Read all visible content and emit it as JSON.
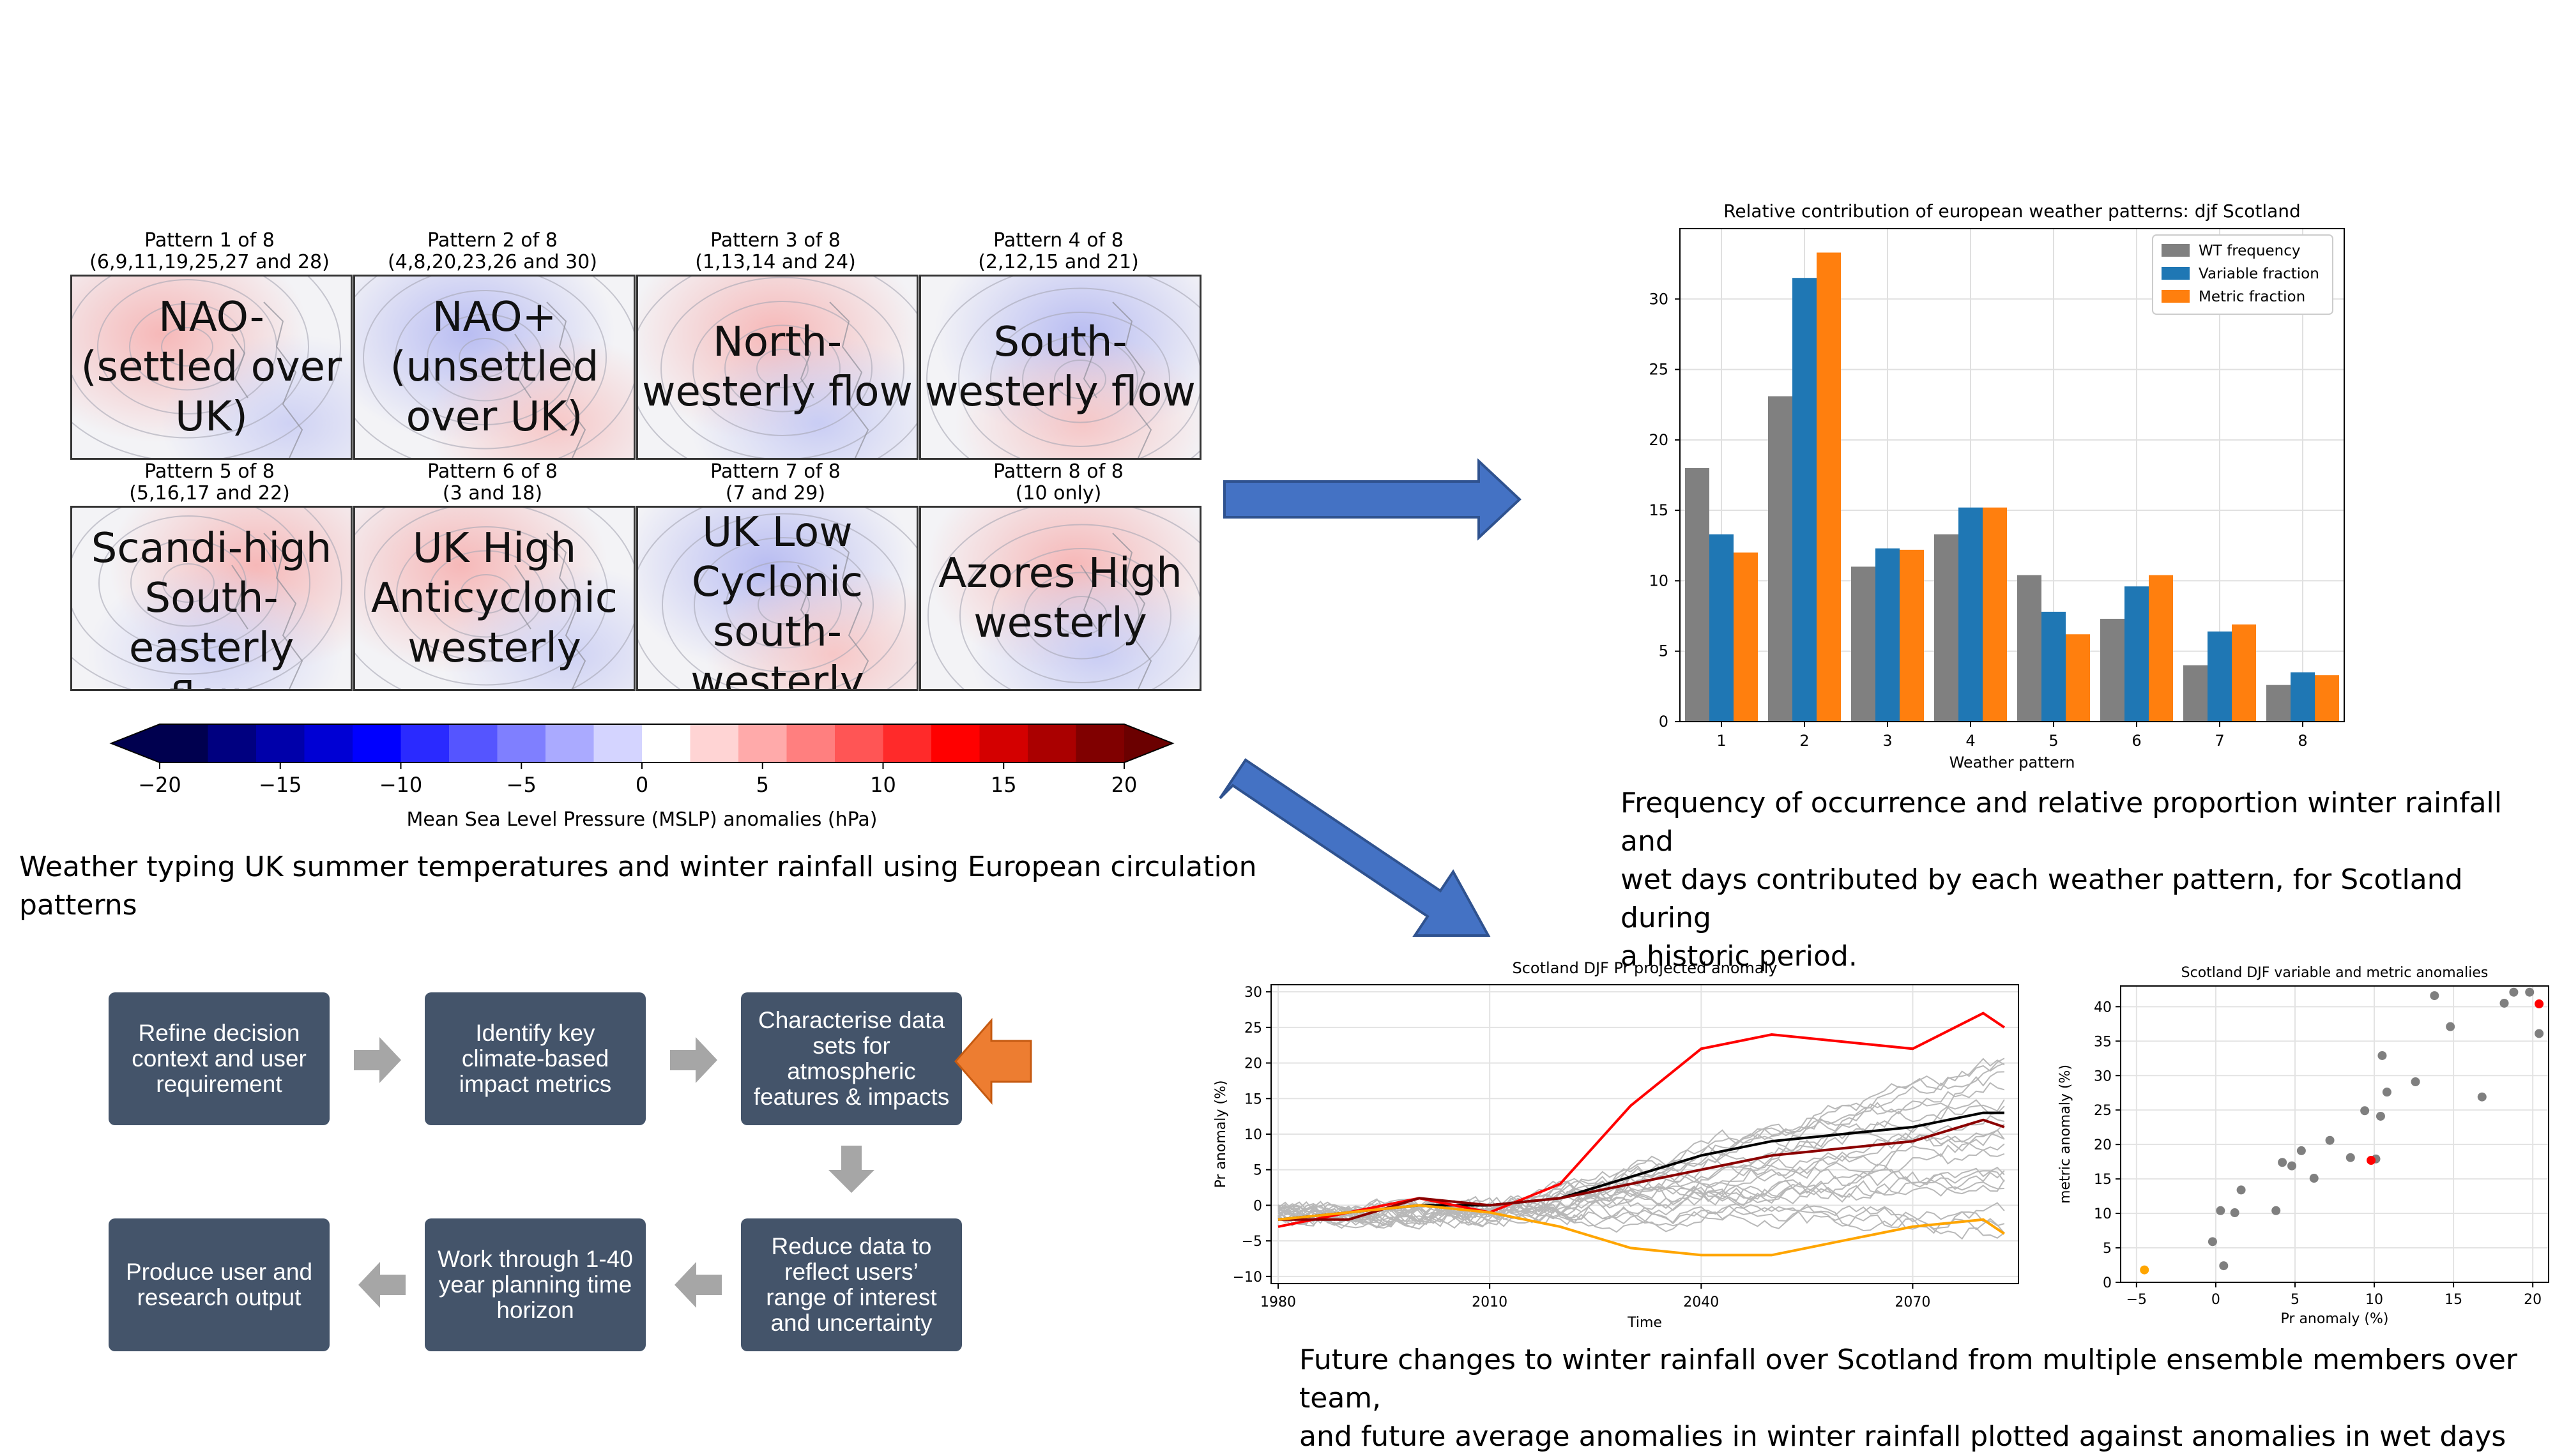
{
  "patterns": [
    {
      "title": "Pattern 1 of 8",
      "members": "(6,9,11,19,25,27 and 28)",
      "label_lines": [
        "NAO-",
        "(settled over",
        "UK)"
      ],
      "tone": "high"
    },
    {
      "title": "Pattern 2 of 8",
      "members": "(4,8,20,23,26 and 30)",
      "label_lines": [
        "NAO+",
        "(unsettled",
        "over UK)"
      ],
      "tone": "low"
    },
    {
      "title": "Pattern 3 of 8",
      "members": "(1,13,14 and 24)",
      "label_lines": [
        "North-",
        "westerly flow"
      ],
      "tone": "mixed"
    },
    {
      "title": "Pattern 4 of 8",
      "members": "(2,12,15 and 21)",
      "label_lines": [
        "South-",
        "westerly flow"
      ],
      "tone": "low"
    },
    {
      "title": "Pattern 5 of 8",
      "members": "(5,16,17 and 22)",
      "label_lines": [
        "Scandi-high",
        "South-easterly",
        "flow"
      ],
      "tone": "high"
    },
    {
      "title": "Pattern 6 of 8",
      "members": "(3 and 18)",
      "label_lines": [
        "UK High",
        "Anticyclonic",
        "westerly"
      ],
      "tone": "high"
    },
    {
      "title": "Pattern 7 of 8",
      "members": "(7 and 29)",
      "label_lines": [
        "UK Low",
        "Cyclonic",
        "south-",
        "westerly"
      ],
      "tone": "low"
    },
    {
      "title": "Pattern 8 of 8",
      "members": "(10 only)",
      "label_lines": [
        "Azores High",
        "westerly"
      ],
      "tone": "mixed"
    }
  ],
  "colorbar": {
    "ticks": [
      "−20",
      "−15",
      "−10",
      "−5",
      "0",
      "5",
      "10",
      "15",
      "20"
    ],
    "label": "Mean Sea Level Pressure (MSLP) anomalies (hPa)",
    "colors": [
      "#00008b",
      "#0000ff",
      "#ffffff",
      "#ff0000",
      "#8b0000"
    ]
  },
  "captions": {
    "weather_typing": "Weather typing UK summer temperatures and winter rainfall using European circulation patterns",
    "frequency": [
      "Frequency of occurrence and relative proportion winter rainfall and",
      "wet days contributed by each weather pattern, for Scotland during",
      "a historic period."
    ],
    "future": [
      "Future changes to winter rainfall over Scotland from multiple ensemble members over team,",
      "and future average anomalies in winter rainfall plotted against anomalies in wet days"
    ]
  },
  "workflow": {
    "steps": [
      {
        "lines": [
          "Refine decision",
          "context and user",
          "requirement"
        ]
      },
      {
        "lines": [
          "Identify key",
          "climate-based",
          "impact metrics"
        ]
      },
      {
        "lines": [
          "Characterise data",
          "sets for",
          "atmospheric",
          "features & impacts"
        ]
      },
      {
        "lines": [
          "Reduce data to",
          "reflect users’",
          "range of interest",
          "and uncertainty"
        ]
      },
      {
        "lines": [
          "Work through 1-40",
          "year planning time",
          "horizon"
        ]
      },
      {
        "lines": [
          "Produce user and",
          "research output"
        ]
      }
    ],
    "highlight_color": "#ed7d31",
    "box_color": "#44546a"
  },
  "chart_data": [
    {
      "type": "bar",
      "title": "Relative contribution of european weather patterns: djf Scotland",
      "xlabel": "Weather pattern",
      "ylabel": "",
      "categories": [
        "1",
        "2",
        "3",
        "4",
        "5",
        "6",
        "7",
        "8"
      ],
      "ylim": [
        0,
        35
      ],
      "yticks": [
        "0",
        "5",
        "10",
        "15",
        "20",
        "25",
        "30"
      ],
      "grid": true,
      "legend": "top-right",
      "series": [
        {
          "name": "WT frequency",
          "color": "#808080",
          "values": [
            18.0,
            23.1,
            11.0,
            13.3,
            10.4,
            7.3,
            4.0,
            2.6
          ]
        },
        {
          "name": "Variable fraction",
          "color": "#1f77b4",
          "values": [
            13.3,
            31.5,
            12.3,
            15.2,
            7.8,
            9.6,
            6.4,
            3.5
          ]
        },
        {
          "name": "Metric fraction",
          "color": "#ff7f0e",
          "values": [
            12.0,
            33.3,
            12.2,
            15.2,
            6.2,
            10.4,
            6.9,
            3.3
          ]
        }
      ]
    },
    {
      "type": "line",
      "title": "Scotland DJF Pr projected anomaly",
      "xlabel": "Time",
      "ylabel": "Pr anomaly (%)",
      "xlim": [
        1979,
        2085
      ],
      "ylim": [
        -11,
        31
      ],
      "xticks": [
        "1980",
        "2010",
        "2040",
        "2070"
      ],
      "yticks": [
        "−10",
        "−5",
        "0",
        "5",
        "10",
        "15",
        "20",
        "25",
        "30"
      ],
      "grid": true,
      "series": [
        {
          "name": "",
          "color": "#000000",
          "x": [
            1980,
            1990,
            2000,
            2010,
            2020,
            2030,
            2040,
            2050,
            2060,
            2070,
            2080,
            2083
          ],
          "y": [
            -2,
            -1,
            0,
            0,
            1,
            4,
            7,
            9,
            10,
            11,
            13,
            13
          ]
        },
        {
          "name": "",
          "color": "#ff0000",
          "x": [
            1980,
            1990,
            2000,
            2010,
            2020,
            2030,
            2040,
            2050,
            2060,
            2070,
            2080,
            2083
          ],
          "y": [
            -3,
            -1,
            1,
            -1,
            3,
            14,
            22,
            24,
            23,
            22,
            27,
            25
          ]
        },
        {
          "name": "",
          "color": "#8b0000",
          "x": [
            1980,
            1990,
            2000,
            2010,
            2020,
            2030,
            2040,
            2050,
            2060,
            2070,
            2080,
            2083
          ],
          "y": [
            -2,
            -2,
            1,
            0,
            1,
            3,
            5,
            7,
            8,
            9,
            12,
            11
          ]
        },
        {
          "name": "",
          "color": "#ffa500",
          "x": [
            1980,
            1990,
            2000,
            2010,
            2020,
            2030,
            2040,
            2050,
            2060,
            2070,
            2080,
            2083
          ],
          "y": [
            -2,
            -1,
            0,
            -1,
            -3,
            -6,
            -7,
            -7,
            -5,
            -3,
            -2,
            -4
          ]
        }
      ],
      "ensemble_count": 22,
      "ensemble_color": "#b8b8b8"
    },
    {
      "type": "scatter",
      "title": "Scotland DJF variable and metric anomalies",
      "xlabel": "Pr anomaly (%)",
      "ylabel": "metric anomaly (%)",
      "xlim": [
        -6,
        21
      ],
      "ylim": [
        0,
        43
      ],
      "xticks": [
        "−5",
        "0",
        "5",
        "10",
        "15",
        "20"
      ],
      "yticks": [
        "0",
        "5",
        "10",
        "15",
        "20",
        "25",
        "30",
        "35",
        "40"
      ],
      "grid": true,
      "series": [
        {
          "name": "",
          "color": "#7f7f7f",
          "x": [
            -0.2,
            0.3,
            0.5,
            1.2,
            1.6,
            3.8,
            4.2,
            4.8,
            5.4,
            6.2,
            7.2,
            8.5,
            9.4,
            10.1,
            10.4,
            10.5,
            10.8,
            12.6,
            13.8,
            14.8,
            16.8,
            18.2,
            18.8,
            19.8,
            20.4
          ],
          "y": [
            5.9,
            10.4,
            2.4,
            10.1,
            13.4,
            10.4,
            17.4,
            16.9,
            19.1,
            15.1,
            20.6,
            18.1,
            24.9,
            17.9,
            24.1,
            32.9,
            27.6,
            29.1,
            41.6,
            37.1,
            26.9,
            40.5,
            42.1,
            42.1,
            36.1
          ]
        },
        {
          "name": "",
          "color": "#ff0000",
          "x": [
            9.8,
            20.4
          ],
          "y": [
            17.7,
            40.4
          ]
        },
        {
          "name": "",
          "color": "#ffa500",
          "x": [
            -4.5
          ],
          "y": [
            1.8
          ]
        }
      ]
    }
  ]
}
